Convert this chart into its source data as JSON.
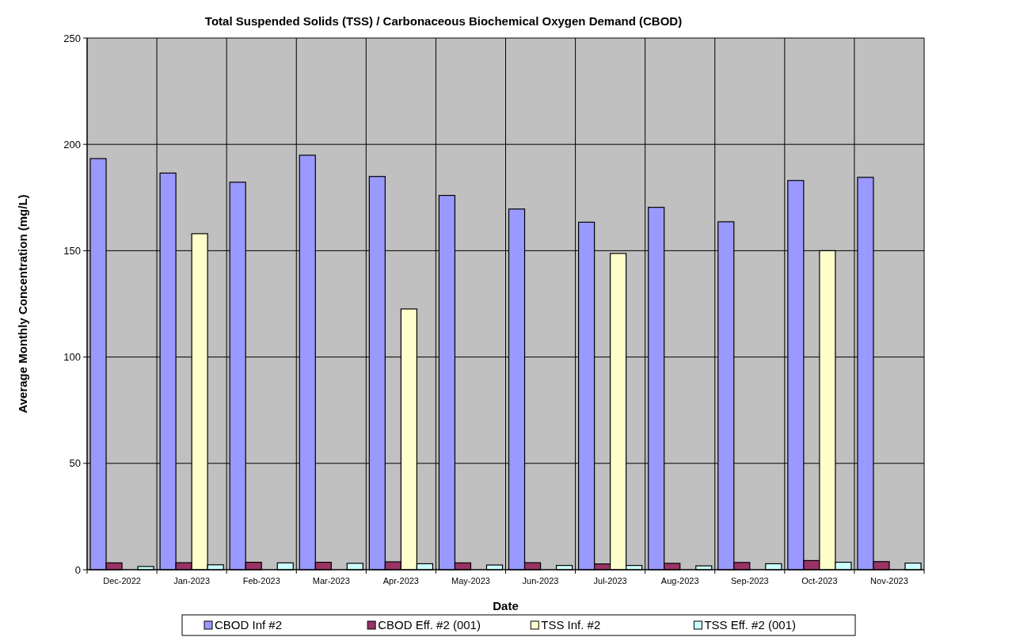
{
  "chart_data": {
    "type": "bar",
    "title": "Total Suspended Solids (TSS) / Carbonaceous Biochemical Oxygen Demand (CBOD)",
    "xlabel": "Date",
    "ylabel": "Average Monthly Concentration (mg/L)",
    "categories": [
      "Dec-2022",
      "Jan-2023",
      "Feb-2023",
      "Mar-2023",
      "Apr-2023",
      "May-2023",
      "Jun-2023",
      "Jul-2023",
      "Aug-2023",
      "Sep-2023",
      "Oct-2023",
      "Nov-2023"
    ],
    "series": [
      {
        "name": "CBOD Inf #2",
        "color": "#9999ff",
        "values": [
          193.3,
          186.5,
          182.2,
          194.9,
          184.9,
          176,
          169.6,
          163.4,
          170.4,
          163.6,
          183,
          184.5
        ]
      },
      {
        "name": "CBOD Eff. #2 (001)",
        "color": "#993366",
        "values": [
          3.2,
          3.3,
          3.5,
          3.5,
          3.7,
          3.2,
          3.3,
          2.7,
          3,
          3.4,
          4.3,
          3.8
        ]
      },
      {
        "name": "TSS Inf. #2",
        "color": "#ffffcc",
        "values": [
          null,
          158,
          null,
          null,
          122.6,
          null,
          null,
          148.7,
          null,
          null,
          150,
          null
        ]
      },
      {
        "name": "TSS Eff. #2 (001)",
        "color": "#ccffff",
        "values": [
          1.5,
          2.3,
          3.2,
          3,
          2.8,
          2.2,
          2,
          2,
          1.8,
          2.8,
          3.5,
          3.1
        ]
      }
    ],
    "ylim": [
      0,
      250
    ],
    "yticks": [
      0,
      50,
      100,
      150,
      200,
      250
    ],
    "grid": true,
    "legend": "bottom"
  }
}
